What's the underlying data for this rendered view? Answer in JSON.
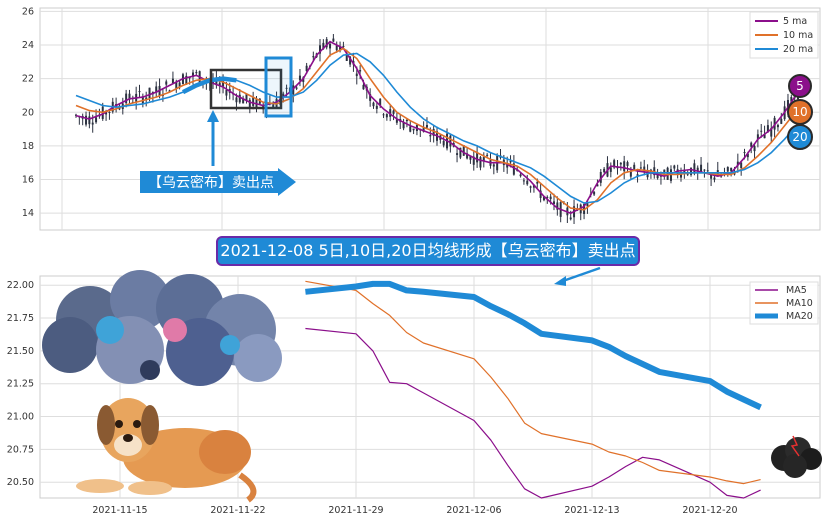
{
  "colors": {
    "ma5": "#8b0f8b",
    "ma10": "#e0712a",
    "ma20": "#1f8ad6",
    "candle": "#2b3140",
    "grid": "#dedede",
    "accent": "#1f8ad6",
    "badge_border": "#6a2aa8"
  },
  "callout": {
    "text": "2021-12-08 5日,10日,20日均线形成【乌云密布】卖出点"
  },
  "annotation": {
    "text": "【乌云密布】卖出点"
  },
  "badges": {
    "b5": "5",
    "b10": "10",
    "b20": "20"
  },
  "chart_data": [
    {
      "type": "line",
      "subtype": "candlestick-with-moving-averages",
      "yticks": [
        14,
        16,
        18,
        20,
        22,
        24,
        26
      ],
      "ylim": [
        13,
        26.2
      ],
      "grid": true,
      "legend_position": "top-right",
      "series": [
        {
          "name": "5 ma",
          "color": "#8b0f8b",
          "values": [
            19.8,
            19.6,
            19.9,
            20.4,
            20.8,
            20.9,
            21.2,
            21.6,
            22.0,
            22.2,
            21.8,
            21.5,
            21.0,
            20.6,
            20.4,
            20.6,
            21.2,
            22.0,
            23.4,
            24.2,
            23.8,
            22.6,
            21.0,
            20.2,
            19.6,
            19.2,
            18.9,
            18.6,
            18.2,
            17.6,
            17.2,
            17.0,
            17.0,
            16.6,
            15.9,
            15.0,
            14.3,
            14.0,
            14.4,
            15.8,
            16.8,
            16.7,
            16.5,
            16.4,
            16.2,
            16.5,
            16.6,
            16.4,
            16.2,
            16.4,
            17.3,
            18.4,
            19.0,
            20.0,
            21.2
          ]
        },
        {
          "name": "10 ma",
          "color": "#e0712a",
          "values": [
            20.4,
            20.1,
            20.0,
            20.2,
            20.5,
            20.7,
            20.9,
            21.2,
            21.6,
            21.9,
            22.0,
            21.8,
            21.4,
            21.0,
            20.6,
            20.5,
            20.8,
            21.4,
            22.4,
            23.4,
            23.8,
            23.2,
            22.0,
            20.9,
            20.0,
            19.5,
            19.1,
            18.8,
            18.4,
            18.0,
            17.6,
            17.2,
            17.0,
            16.8,
            16.3,
            15.6,
            14.9,
            14.3,
            14.2,
            14.8,
            15.8,
            16.4,
            16.6,
            16.5,
            16.3,
            16.3,
            16.4,
            16.4,
            16.3,
            16.3,
            16.7,
            17.4,
            18.2,
            19.2,
            20.2
          ]
        },
        {
          "name": "20 ma",
          "color": "#1f8ad6",
          "values": [
            21.0,
            20.7,
            20.4,
            20.3,
            20.4,
            20.5,
            20.7,
            20.9,
            21.2,
            21.6,
            21.9,
            22.0,
            21.9,
            21.6,
            21.2,
            20.9,
            20.9,
            21.2,
            21.9,
            22.8,
            23.4,
            23.5,
            23.0,
            22.2,
            21.2,
            20.3,
            19.6,
            19.1,
            18.7,
            18.3,
            18.0,
            17.6,
            17.3,
            17.0,
            16.7,
            16.2,
            15.6,
            15.0,
            14.6,
            14.7,
            15.2,
            15.8,
            16.2,
            16.4,
            16.4,
            16.4,
            16.4,
            16.4,
            16.4,
            16.4,
            16.6,
            17.0,
            17.6,
            18.4,
            19.3
          ]
        }
      ],
      "highlight_boxes": [
        "MA crossover",
        "candles at crossover"
      ]
    },
    {
      "type": "line",
      "x_ticklabels": [
        "2021-11-15",
        "2021-11-22",
        "2021-11-29",
        "2021-12-06",
        "2021-12-13",
        "2021-12-20"
      ],
      "yticks": [
        "20.50",
        "20.75",
        "21.00",
        "21.25",
        "21.50",
        "21.75",
        "22.00"
      ],
      "ylim": [
        20.38,
        22.07
      ],
      "grid": true,
      "legend_position": "top-right",
      "x": [
        "2021-11-26",
        "2021-11-29",
        "2021-11-30",
        "2021-12-01",
        "2021-12-02",
        "2021-12-03",
        "2021-12-06",
        "2021-12-07",
        "2021-12-08",
        "2021-12-09",
        "2021-12-10",
        "2021-12-13",
        "2021-12-14",
        "2021-12-15",
        "2021-12-16",
        "2021-12-17",
        "2021-12-20",
        "2021-12-21",
        "2021-12-22",
        "2021-12-23"
      ],
      "series": [
        {
          "name": "MA5",
          "color": "#8b0f8b",
          "values": [
            21.67,
            21.63,
            21.5,
            21.26,
            21.25,
            21.18,
            20.97,
            20.82,
            20.63,
            20.45,
            20.38,
            20.47,
            20.54,
            20.62,
            20.69,
            20.67,
            20.5,
            20.4,
            20.38,
            20.44
          ]
        },
        {
          "name": "MA10",
          "color": "#e0712a",
          "values": [
            22.03,
            21.96,
            21.86,
            21.77,
            21.64,
            21.56,
            21.44,
            21.3,
            21.14,
            20.95,
            20.87,
            20.79,
            20.73,
            20.7,
            20.65,
            20.59,
            20.54,
            20.51,
            20.49,
            20.52
          ]
        },
        {
          "name": "MA20",
          "color": "#1f8ad6",
          "values": [
            21.95,
            21.99,
            22.01,
            22.01,
            21.96,
            21.95,
            21.91,
            21.84,
            21.78,
            21.71,
            21.63,
            21.58,
            21.53,
            21.46,
            21.4,
            21.34,
            21.27,
            21.19,
            21.13,
            21.07
          ]
        }
      ]
    }
  ]
}
